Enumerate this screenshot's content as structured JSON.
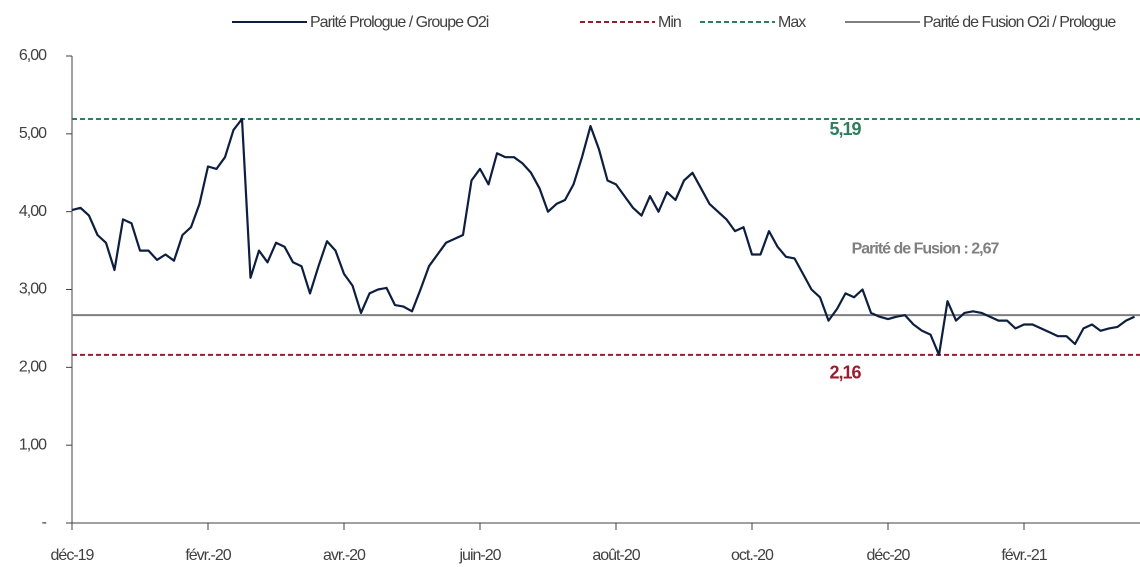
{
  "chart_data": {
    "type": "line",
    "categories": [
      "déc-19",
      null,
      null,
      null,
      null,
      null,
      null,
      null,
      null,
      null,
      null,
      null,
      null,
      null,
      null,
      null,
      "févr.-20",
      null,
      null,
      null,
      null,
      null,
      null,
      null,
      null,
      null,
      null,
      null,
      null,
      null,
      null,
      null,
      "avr.-20",
      null,
      null,
      null,
      null,
      null,
      null,
      null,
      null,
      null,
      null,
      null,
      null,
      null,
      null,
      null,
      "juin-20",
      null,
      null,
      null,
      null,
      null,
      null,
      null,
      null,
      null,
      null,
      null,
      null,
      null,
      null,
      null,
      "août-20",
      null,
      null,
      null,
      null,
      null,
      null,
      null,
      null,
      null,
      null,
      null,
      null,
      null,
      null,
      null,
      "oct.-20",
      null,
      null,
      null,
      null,
      null,
      null,
      null,
      null,
      null,
      null,
      null,
      null,
      null,
      null,
      null,
      "déc-20",
      null,
      null,
      null,
      null,
      null,
      null,
      null,
      null,
      null,
      null,
      null,
      null,
      null,
      null,
      null,
      "févr.-21",
      null,
      null,
      null,
      null,
      null,
      null,
      null,
      null,
      null,
      null,
      null,
      null,
      null
    ],
    "series": [
      {
        "name": "Parité Prologue / Groupe O2i",
        "color": "#0d1e3f",
        "values": [
          4.02,
          4.05,
          3.95,
          3.7,
          3.6,
          3.25,
          3.9,
          3.85,
          3.5,
          3.5,
          3.38,
          3.45,
          3.37,
          3.7,
          3.8,
          4.1,
          4.58,
          4.55,
          4.7,
          5.05,
          5.19,
          3.15,
          3.5,
          3.35,
          3.6,
          3.55,
          3.35,
          3.3,
          2.95,
          3.3,
          3.62,
          3.5,
          3.2,
          3.05,
          2.7,
          2.95,
          3.0,
          3.02,
          2.8,
          2.78,
          2.72,
          3.0,
          3.3,
          3.45,
          3.6,
          3.65,
          3.7,
          4.4,
          4.55,
          4.35,
          4.75,
          4.7,
          4.7,
          4.62,
          4.5,
          4.3,
          4.0,
          4.1,
          4.15,
          4.35,
          4.7,
          5.1,
          4.8,
          4.4,
          4.35,
          4.2,
          4.05,
          3.95,
          4.2,
          4.0,
          4.25,
          4.15,
          4.4,
          4.5,
          4.3,
          4.1,
          4.0,
          3.9,
          3.75,
          3.8,
          3.45,
          3.45,
          3.75,
          3.55,
          3.42,
          3.4,
          3.2,
          3.0,
          2.9,
          2.6,
          2.75,
          2.95,
          2.9,
          3.0,
          2.7,
          2.65,
          2.62,
          2.65,
          2.67,
          2.55,
          2.47,
          2.42,
          2.16,
          2.85,
          2.6,
          2.7,
          2.72,
          2.7,
          2.65,
          2.6,
          2.6,
          2.5,
          2.55,
          2.55,
          2.5,
          2.45,
          2.4,
          2.4,
          2.3,
          2.5,
          2.55,
          2.47,
          2.5,
          2.52,
          2.6,
          2.65
        ]
      },
      {
        "name": "Min",
        "color": "#9b1b30",
        "dash": true,
        "value": 2.16
      },
      {
        "name": "Max",
        "color": "#2e7d5b",
        "dash": true,
        "value": 5.19
      },
      {
        "name": "Parité de Fusion O2i / Prologue",
        "color": "#7f7f7f",
        "dash": false,
        "value": 2.67
      }
    ],
    "annotations": [
      {
        "text": "5,19",
        "series": 2,
        "color": "#2e7d5b"
      },
      {
        "text": "2,16",
        "series": 1,
        "color": "#9b1b30"
      },
      {
        "text": "Parité de Fusion : 2,67",
        "series": 3,
        "color": "#7f7f7f"
      }
    ],
    "ylim": [
      0,
      6
    ],
    "yticks": [
      {
        "value": 0,
        "label": "-"
      },
      {
        "value": 1,
        "label": "1,00"
      },
      {
        "value": 2,
        "label": "2,00"
      },
      {
        "value": 3,
        "label": "3,00"
      },
      {
        "value": 4,
        "label": "4,00"
      },
      {
        "value": 5,
        "label": "5,00"
      },
      {
        "value": 6,
        "label": "6,00"
      }
    ],
    "legend": "top"
  }
}
